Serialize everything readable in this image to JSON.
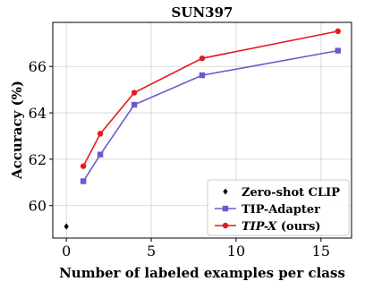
{
  "chart_data": {
    "type": "line",
    "title": "SUN397",
    "xlabel": "Number of labeled examples per class",
    "ylabel": "Accuracy (%)",
    "xlim": [
      -0.8,
      16.8
    ],
    "ylim": [
      58.6,
      67.9
    ],
    "xticks": [
      0,
      5,
      10,
      15
    ],
    "yticks": [
      60,
      62,
      64,
      66
    ],
    "xtick_labels": [
      "0",
      "5",
      "10",
      "15"
    ],
    "ytick_labels": [
      "60",
      "62",
      "64",
      "66"
    ],
    "grid": true,
    "legend_position": "bottom-right",
    "series": [
      {
        "name": "Zero-shot CLIP",
        "marker": "diamond",
        "color": "#000000",
        "x": [
          0
        ],
        "y": [
          59.1
        ]
      },
      {
        "name": "TIP-Adapter",
        "marker": "square",
        "color": "#6a5acd",
        "x": [
          1,
          2,
          4,
          8,
          16
        ],
        "y": [
          61.05,
          62.2,
          64.35,
          65.62,
          66.68
        ]
      },
      {
        "name_parts": [
          "TIP-X",
          " (ours)"
        ],
        "marker": "circle",
        "color": "#e41a1c",
        "x": [
          1,
          2,
          4,
          8,
          16
        ],
        "y": [
          61.7,
          63.1,
          64.87,
          66.35,
          67.52
        ]
      }
    ]
  }
}
